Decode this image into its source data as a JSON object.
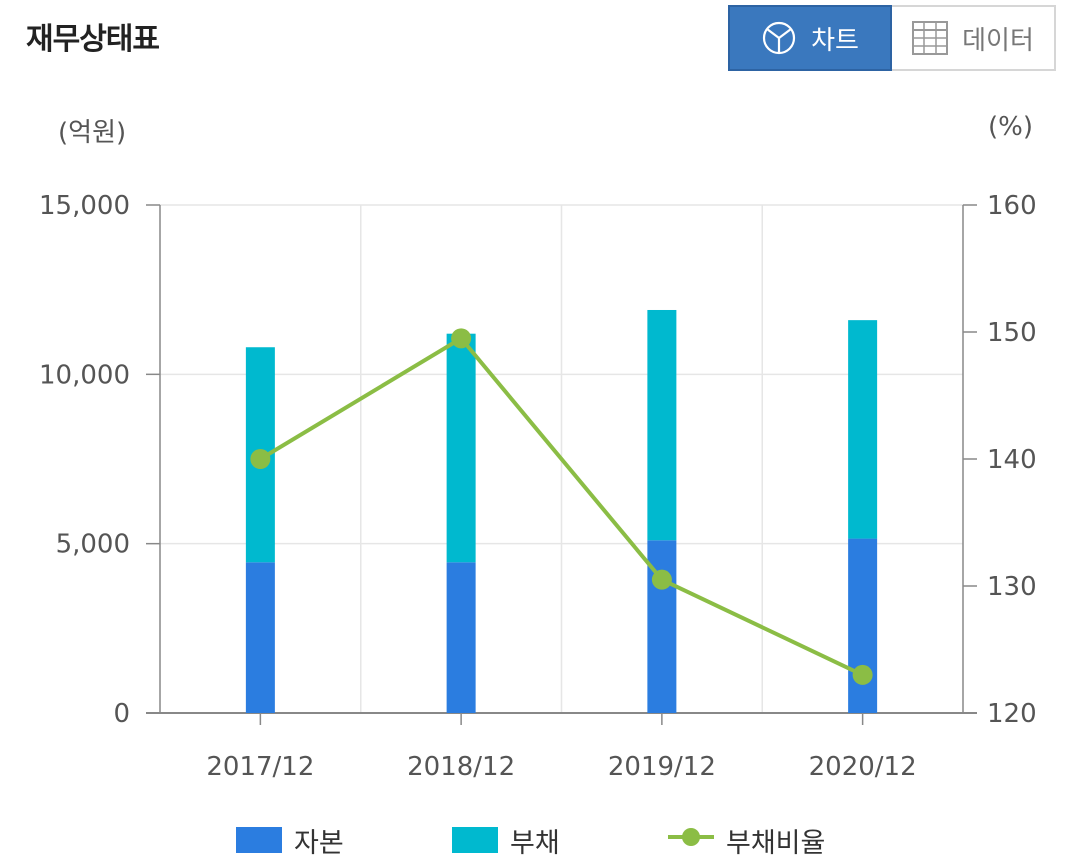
{
  "header": {
    "title": "재무상태표",
    "chart_button_label": "차트",
    "data_button_label": "데이터",
    "chart_button_icon": "pie-chart-icon",
    "data_button_icon": "table-grid-icon"
  },
  "units": {
    "left": "(억원)",
    "right": "(%)"
  },
  "colors": {
    "equity": "#2b7de0",
    "debt": "#00b9cf",
    "ratio": "#8bbd45",
    "active_button": "#3a78be"
  },
  "chart_data": {
    "type": "bar",
    "stacked": true,
    "categories": [
      "2017/12",
      "2018/12",
      "2019/12",
      "2020/12"
    ],
    "series": [
      {
        "name": "자본",
        "type": "bar",
        "axis": "left",
        "values": [
          4450,
          4450,
          5100,
          5150
        ]
      },
      {
        "name": "부채",
        "type": "bar",
        "axis": "left",
        "values": [
          6350,
          6750,
          6800,
          6450
        ]
      },
      {
        "name": "부채비율",
        "type": "line",
        "axis": "right",
        "values": [
          140,
          149.5,
          130.5,
          123
        ]
      }
    ],
    "y_left": {
      "lim": [
        0,
        15000
      ],
      "ticks": [
        "0",
        "5,000",
        "10,000",
        "15,000"
      ],
      "tick_values": [
        0,
        5000,
        10000,
        15000
      ]
    },
    "y_right": {
      "lim": [
        120,
        160
      ],
      "ticks": [
        "120",
        "130",
        "140",
        "150",
        "160"
      ],
      "tick_values": [
        120,
        130,
        140,
        150,
        160
      ]
    },
    "grid": true,
    "legend": "bottom-center"
  }
}
